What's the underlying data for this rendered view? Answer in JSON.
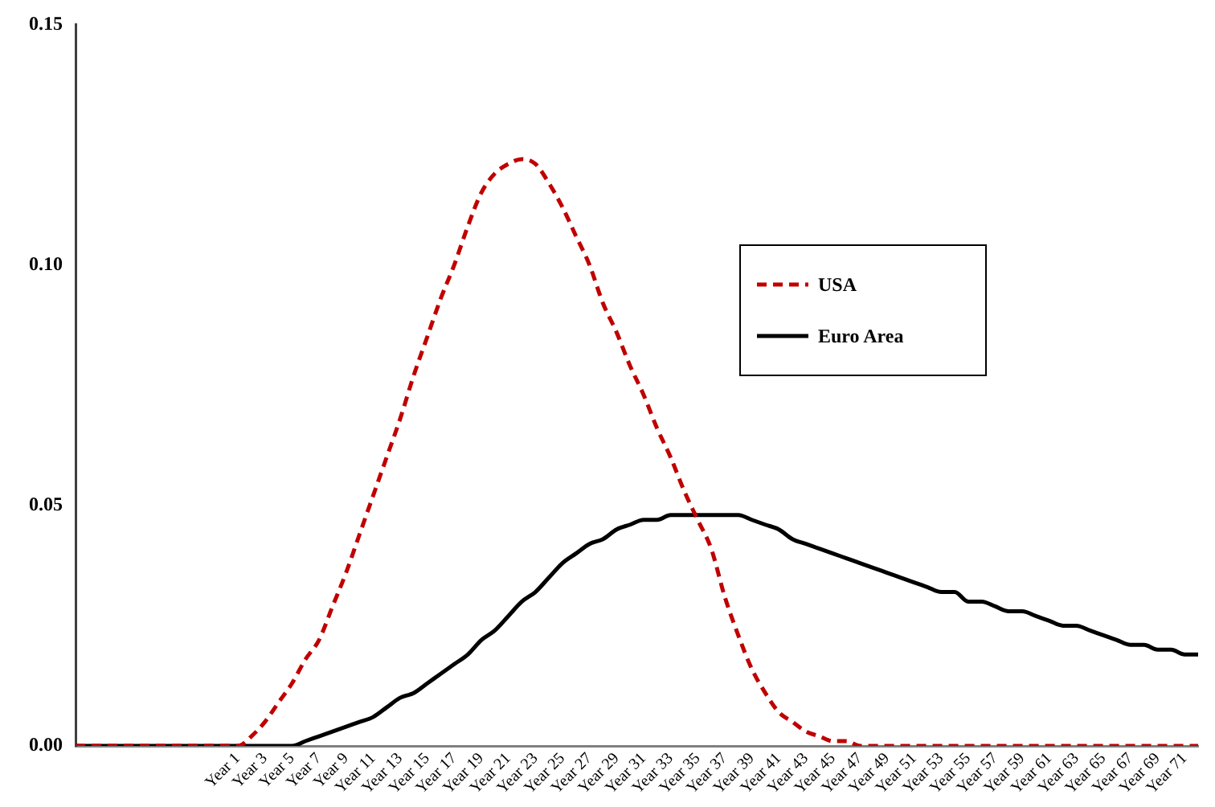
{
  "chart_data": {
    "type": "line",
    "categories": [
      null,
      null,
      null,
      null,
      null,
      null,
      null,
      null,
      null,
      null,
      null,
      null,
      "Year 1",
      null,
      "Year 3",
      null,
      "Year 5",
      null,
      "Year 7",
      null,
      "Year 9",
      null,
      "Year 11",
      null,
      "Year 13",
      null,
      "Year 15",
      null,
      "Year 17",
      null,
      "Year 19",
      null,
      "Year 21",
      null,
      "Year 23",
      null,
      "Year 25",
      null,
      "Year 27",
      null,
      "Year 29",
      null,
      "Year 31",
      null,
      "Year 33",
      null,
      "Year 35",
      null,
      "Year 37",
      null,
      "Year 39",
      null,
      "Year 41",
      null,
      "Year 43",
      null,
      "Year 45",
      null,
      "Year 47",
      null,
      "Year 49",
      null,
      "Year 51",
      null,
      "Year 53",
      null,
      "Year 55",
      null,
      "Year 57",
      null,
      "Year 59",
      null,
      "Year 61",
      null,
      "Year 63",
      null,
      "Year 65",
      null,
      "Year 67",
      null,
      "Year 69",
      null,
      "Year 71",
      null
    ],
    "series": [
      {
        "name": "USA",
        "color": "#c00000",
        "line_style": "dashed",
        "values": [
          0,
          0,
          0,
          0,
          0,
          0,
          0,
          0,
          0,
          0,
          0,
          0,
          0,
          0.002,
          0.005,
          0.009,
          0.013,
          0.018,
          0.022,
          0.029,
          0.036,
          0.044,
          0.052,
          0.06,
          0.068,
          0.077,
          0.085,
          0.093,
          0.1,
          0.108,
          0.115,
          0.119,
          0.121,
          0.122,
          0.121,
          0.117,
          0.112,
          0.106,
          0.1,
          0.092,
          0.086,
          0.079,
          0.073,
          0.066,
          0.06,
          0.053,
          0.047,
          0.041,
          0.031,
          0.023,
          0.016,
          0.011,
          0.007,
          0.005,
          0.003,
          0.002,
          0.001,
          0.001,
          0,
          0,
          0,
          0,
          0,
          0,
          0,
          0,
          0,
          0,
          0,
          0,
          0,
          0,
          0,
          0,
          0,
          0,
          0,
          0,
          0,
          0,
          0,
          0,
          0,
          0
        ]
      },
      {
        "name": "Euro Area",
        "color": "#000000",
        "line_style": "solid",
        "values": [
          0,
          0,
          0,
          0,
          0,
          0,
          0,
          0,
          0,
          0,
          0,
          0,
          0,
          0,
          0,
          0,
          0,
          0.001,
          0.002,
          0.003,
          0.004,
          0.005,
          0.006,
          0.008,
          0.01,
          0.011,
          0.013,
          0.015,
          0.017,
          0.019,
          0.022,
          0.024,
          0.027,
          0.03,
          0.032,
          0.035,
          0.038,
          0.04,
          0.042,
          0.043,
          0.045,
          0.046,
          0.047,
          0.047,
          0.048,
          0.048,
          0.048,
          0.048,
          0.048,
          0.048,
          0.047,
          0.046,
          0.045,
          0.043,
          0.042,
          0.041,
          0.04,
          0.039,
          0.038,
          0.037,
          0.036,
          0.035,
          0.034,
          0.033,
          0.032,
          0.032,
          0.03,
          0.03,
          0.029,
          0.028,
          0.028,
          0.027,
          0.026,
          0.025,
          0.025,
          0.024,
          0.023,
          0.022,
          0.021,
          0.021,
          0.02,
          0.02,
          0.019,
          0.019
        ]
      }
    ],
    "ylim": [
      0,
      0.15
    ],
    "yticks": [
      {
        "value": 0,
        "label": "0.00"
      },
      {
        "value": 0.05,
        "label": "0.05"
      },
      {
        "value": 0.1,
        "label": "0.10"
      },
      {
        "value": 0.15,
        "label": "0.15"
      }
    ],
    "grid": false,
    "legend": "right",
    "marker": "none"
  }
}
